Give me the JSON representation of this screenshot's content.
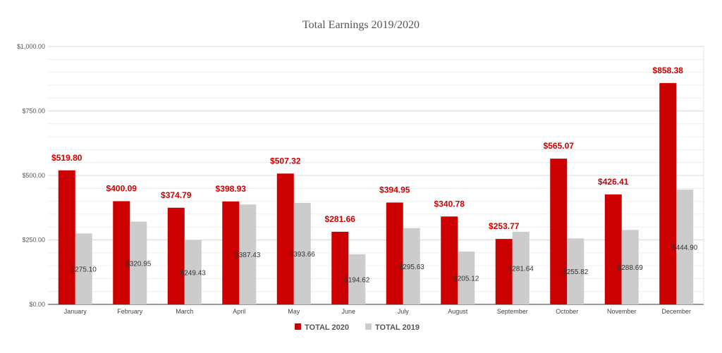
{
  "chart_data": {
    "type": "bar",
    "title": "Total Earnings 2019/2020",
    "categories": [
      "January",
      "February",
      "March",
      "April",
      "May",
      "June",
      "July",
      "August",
      "September",
      "October",
      "November",
      "December"
    ],
    "series": [
      {
        "name": "TOTAL 2020",
        "color": "#cc0000",
        "values": [
          519.8,
          400.09,
          374.79,
          398.93,
          507.32,
          281.66,
          394.95,
          340.78,
          253.77,
          565.07,
          426.41,
          858.38
        ],
        "labels": [
          "$519.80",
          "$400.09",
          "$374.79",
          "$398.93",
          "$507.32",
          "$281.66",
          "$394.95",
          "$340.78",
          "$253.77",
          "$565.07",
          "$426.41",
          "$858.38"
        ]
      },
      {
        "name": "TOTAL 2019",
        "color": "#cccccc",
        "values": [
          275.1,
          320.95,
          249.43,
          387.43,
          393.66,
          194.62,
          295.63,
          205.12,
          281.64,
          255.82,
          288.69,
          444.9
        ],
        "labels": [
          "$275.10",
          "$320.95",
          "$249.43",
          "$387.43",
          "$393.66",
          "$194.62",
          "$295.63",
          "$205.12",
          "$281.64",
          "$255.82",
          "$288.69",
          "$444.90"
        ]
      }
    ],
    "ylim": [
      0,
      1000
    ],
    "yticks": [
      0,
      250,
      500,
      750,
      1000
    ],
    "ytick_labels": [
      "$0.00",
      "$250.00",
      "$500.00",
      "$750.00",
      "$1,000.00"
    ],
    "grid": true,
    "legend_position": "bottom"
  }
}
